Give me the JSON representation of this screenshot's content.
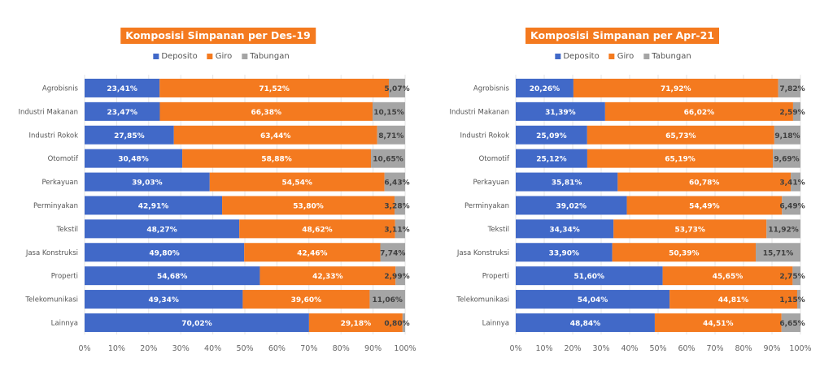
{
  "colors": {
    "deposito": "#4169c8",
    "giro": "#f47a1f",
    "tabungan": "#a5a5a5",
    "title_bg": "#f47a1f",
    "gridline": "#e6e6e6"
  },
  "chart_data": [
    {
      "type": "bar",
      "orientation": "horizontal",
      "stacked": "100%",
      "title": "Komposisi Simpanan per Des-19",
      "legend": [
        "Deposito",
        "Giro",
        "Tabungan"
      ],
      "legend_position": "top",
      "categories": [
        "Agrobisnis",
        "Industri Makanan",
        "Industri Rokok",
        "Otomotif",
        "Perkayuan",
        "Perminyakan",
        "Tekstil",
        "Jasa Konstruksi",
        "Properti",
        "Telekomunikasi",
        "Lainnya"
      ],
      "series": [
        {
          "name": "Deposito",
          "values": [
            23.41,
            23.47,
            27.85,
            30.48,
            39.03,
            42.91,
            48.27,
            49.8,
            54.68,
            49.34,
            70.02
          ],
          "labels": [
            "23,41%",
            "23,47%",
            "27,85%",
            "30,48%",
            "39,03%",
            "42,91%",
            "48,27%",
            "49,80%",
            "54,68%",
            "49,34%",
            "70,02%"
          ]
        },
        {
          "name": "Giro",
          "values": [
            71.52,
            66.38,
            63.44,
            58.88,
            54.54,
            53.8,
            48.62,
            42.46,
            42.33,
            39.6,
            29.18
          ],
          "labels": [
            "71,52%",
            "66,38%",
            "63,44%",
            "58,88%",
            "54,54%",
            "53,80%",
            "48,62%",
            "42,46%",
            "42,33%",
            "39,60%",
            "29,18%"
          ]
        },
        {
          "name": "Tabungan",
          "values": [
            5.07,
            10.15,
            8.71,
            10.65,
            6.43,
            3.28,
            3.11,
            7.74,
            2.99,
            11.06,
            0.8
          ],
          "labels": [
            "5,07%",
            "10,15%",
            "8,71%",
            "10,65%",
            "6,43%",
            "3,28%",
            "3,11%",
            "7,74%",
            "2,99%",
            "11,06%",
            "0,80%"
          ]
        }
      ],
      "xlabel": "",
      "ylabel": "",
      "xlim": [
        0,
        100
      ],
      "xticks": [
        "0%",
        "10%",
        "20%",
        "30%",
        "40%",
        "50%",
        "60%",
        "70%",
        "80%",
        "90%",
        "100%"
      ],
      "grid": true
    },
    {
      "type": "bar",
      "orientation": "horizontal",
      "stacked": "100%",
      "title": "Komposisi Simpanan per Apr-21",
      "legend": [
        "Deposito",
        "Giro",
        "Tabungan"
      ],
      "legend_position": "top",
      "categories": [
        "Agrobisnis",
        "Industri Makanan",
        "Industri Rokok",
        "Otomotif",
        "Perkayuan",
        "Perminyakan",
        "Tekstil",
        "Jasa Konstruksi",
        "Properti",
        "Telekomunikasi",
        "Lainnya"
      ],
      "series": [
        {
          "name": "Deposito",
          "values": [
            20.26,
            31.39,
            25.09,
            25.12,
            35.81,
            39.02,
            34.34,
            33.9,
            51.6,
            54.04,
            48.84
          ],
          "labels": [
            "20,26%",
            "31,39%",
            "25,09%",
            "25,12%",
            "35,81%",
            "39,02%",
            "34,34%",
            "33,90%",
            "51,60%",
            "54,04%",
            "48,84%"
          ]
        },
        {
          "name": "Giro",
          "values": [
            71.92,
            66.02,
            65.73,
            65.19,
            60.78,
            54.49,
            53.73,
            50.39,
            45.65,
            44.81,
            44.51
          ],
          "labels": [
            "71,92%",
            "66,02%",
            "65,73%",
            "65,19%",
            "60,78%",
            "54,49%",
            "53,73%",
            "50,39%",
            "45,65%",
            "44,81%",
            "44,51%"
          ]
        },
        {
          "name": "Tabungan",
          "values": [
            7.82,
            2.59,
            9.18,
            9.69,
            3.41,
            6.49,
            11.92,
            15.71,
            2.75,
            1.15,
            6.65
          ],
          "labels": [
            "7,82%",
            "2,59%",
            "9,18%",
            "9,69%",
            "3,41%",
            "6,49%",
            "11,92%",
            "15,71%",
            "2,75%",
            "1,15%",
            "6,65%"
          ]
        }
      ],
      "xlabel": "",
      "ylabel": "",
      "xlim": [
        0,
        100
      ],
      "xticks": [
        "0%",
        "10%",
        "20%",
        "30%",
        "40%",
        "50%",
        "60%",
        "70%",
        "80%",
        "90%",
        "100%"
      ],
      "grid": true
    }
  ]
}
